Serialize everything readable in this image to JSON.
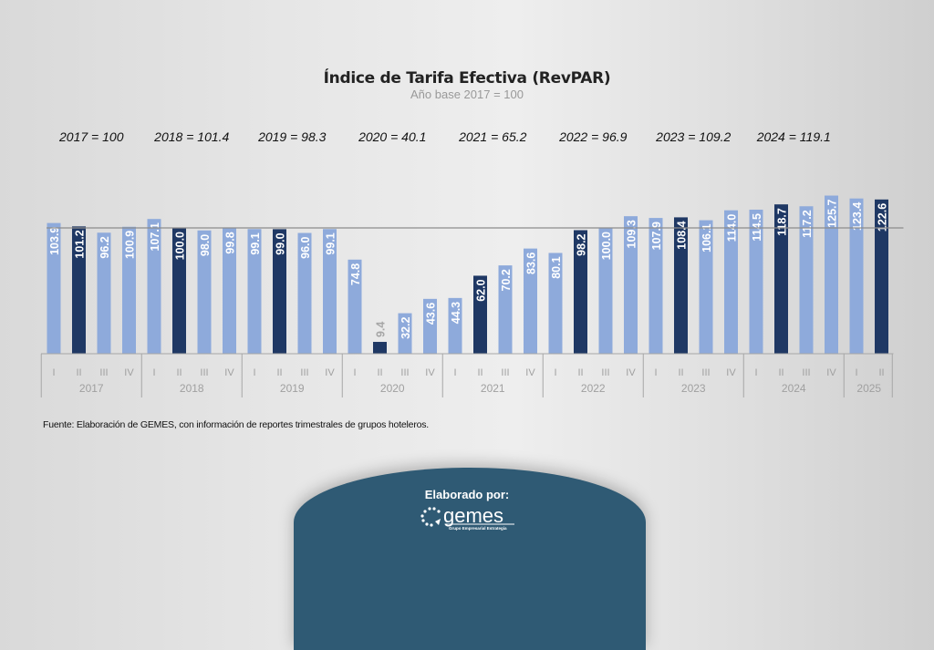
{
  "chart_data": {
    "type": "bar",
    "title": "Índice de Tarifa Efectiva (RevPAR)",
    "subtitle": "Año base 2017 = 100",
    "categories": [
      "I",
      "II",
      "III",
      "IV",
      "I",
      "II",
      "III",
      "IV",
      "I",
      "II",
      "III",
      "IV",
      "I",
      "II",
      "III",
      "IV",
      "I",
      "II",
      "III",
      "IV",
      "I",
      "II",
      "III",
      "IV",
      "I",
      "II",
      "III",
      "IV",
      "I",
      "II",
      "III",
      "IV",
      "I",
      "II"
    ],
    "years": [
      {
        "label": "2017",
        "quarters": 4
      },
      {
        "label": "2018",
        "quarters": 4
      },
      {
        "label": "2019",
        "quarters": 4
      },
      {
        "label": "2020",
        "quarters": 4
      },
      {
        "label": "2021",
        "quarters": 4
      },
      {
        "label": "2022",
        "quarters": 4
      },
      {
        "label": "2023",
        "quarters": 4
      },
      {
        "label": "2024",
        "quarters": 4
      },
      {
        "label": "2025",
        "quarters": 2
      }
    ],
    "values": [
      103.9,
      101.2,
      96.2,
      100.9,
      107.1,
      100.0,
      98.0,
      99.8,
      99.1,
      99.0,
      96.0,
      99.1,
      74.8,
      9.4,
      32.2,
      43.6,
      44.3,
      62.0,
      70.2,
      83.6,
      80.1,
      98.2,
      100.0,
      109.3,
      107.9,
      108.4,
      106.1,
      114.0,
      114.5,
      118.7,
      117.2,
      125.7,
      123.4,
      122.6
    ],
    "data_labels": [
      "103.9",
      "101.2",
      "96.2",
      "100.9",
      "107.1",
      "100.0",
      "98.0",
      "99.8",
      "99.1",
      "99.0",
      "96.0",
      "99.1",
      "74.8",
      "9.4",
      "32.2",
      "43.6",
      "44.3",
      "62.0",
      "70.2",
      "83.6",
      "80.1",
      "98.2",
      "100.0",
      "109.3",
      "107.9",
      "108.4",
      "106.1",
      "114.0",
      "114.5",
      "118.7",
      "117.2",
      "125.7",
      "123.4",
      "122.6"
    ],
    "highlight_quarter": "II",
    "reference_line": 100,
    "ylim": [
      0,
      130
    ],
    "grid": false,
    "colors": {
      "bar": "#8eaadb",
      "highlight": "#1f3864",
      "reference": "#8c8c8c"
    },
    "annual_labels": [
      "2017 = 100",
      "2018 = 101.4",
      "2019 = 98.3",
      "2020 = 40.1",
      "2021 = 65.2",
      "2022 = 96.9",
      "2023 = 109.2",
      "2024 = 119.1"
    ]
  },
  "source": "Fuente: Elaboración de GEMES, con información de reportes trimestrales de grupos hoteleros.",
  "footer": {
    "label": "Elaborado por:",
    "logo_text": "gemes",
    "logo_tagline": "Grupo Empresarial Estrategia",
    "color": "#2f5a74"
  }
}
